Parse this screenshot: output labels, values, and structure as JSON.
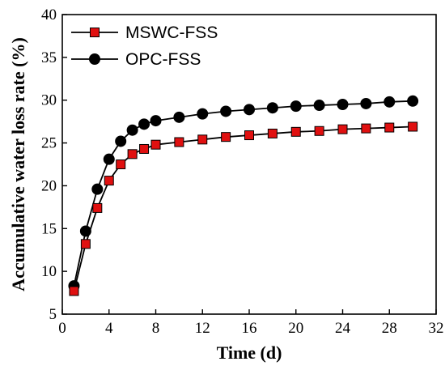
{
  "chart_data": {
    "type": "line",
    "xlabel": "Time (d)",
    "ylabel": "Accumulative water loss rate (%)",
    "xlim": [
      0,
      32
    ],
    "ylim": [
      5,
      40
    ],
    "xticks": [
      "0",
      "4",
      "8",
      "12",
      "16",
      "20",
      "24",
      "28",
      "32"
    ],
    "yticks": [
      "5",
      "10",
      "15",
      "20",
      "25",
      "30",
      "35",
      "40"
    ],
    "legend_position": "top-left",
    "series": [
      {
        "name": "MSWC-FSS",
        "marker": "square",
        "marker_color": "#e01010",
        "x": [
          1,
          2,
          3,
          4,
          5,
          6,
          7,
          8,
          10,
          12,
          14,
          16,
          18,
          20,
          22,
          24,
          26,
          28,
          30
        ],
        "values": [
          7.7,
          13.2,
          17.4,
          20.6,
          22.5,
          23.7,
          24.3,
          24.8,
          25.1,
          25.4,
          25.7,
          25.9,
          26.1,
          26.3,
          26.4,
          26.6,
          26.7,
          26.8,
          26.9
        ]
      },
      {
        "name": "OPC-FSS",
        "marker": "circle",
        "marker_color": "#000000",
        "x": [
          1,
          2,
          3,
          4,
          5,
          6,
          7,
          8,
          10,
          12,
          14,
          16,
          18,
          20,
          22,
          24,
          26,
          28,
          30
        ],
        "values": [
          8.3,
          14.7,
          19.6,
          23.1,
          25.2,
          26.5,
          27.2,
          27.6,
          28.0,
          28.4,
          28.7,
          28.9,
          29.1,
          29.3,
          29.4,
          29.5,
          29.6,
          29.8,
          29.9
        ]
      }
    ]
  }
}
